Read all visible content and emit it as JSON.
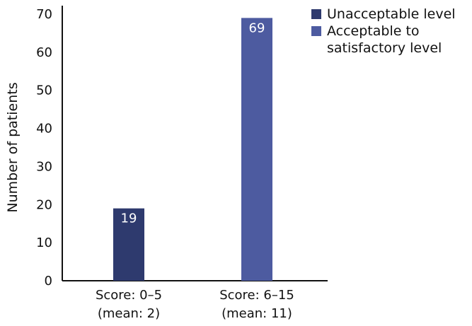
{
  "chart_data": {
    "type": "bar",
    "categories": [
      "Score: 0–5\n(mean: 2)",
      "Score: 6–15\n(mean: 11)"
    ],
    "series": [
      {
        "name": "Unacceptable level",
        "color": "#2e3a6e",
        "values": [
          19,
          null
        ]
      },
      {
        "name": "Acceptable to\nsatisfactory level",
        "color": "#4d5ba0",
        "values": [
          null,
          69
        ]
      }
    ],
    "values": [
      19,
      69
    ],
    "data_labels": [
      "19",
      "69"
    ],
    "title": "",
    "xlabel": "",
    "ylabel": "Number of patients",
    "ylim": [
      0,
      70
    ],
    "yticks": [
      0,
      10,
      20,
      30,
      40,
      50,
      60,
      70
    ],
    "grid": false,
    "legend_position": "top-right"
  }
}
